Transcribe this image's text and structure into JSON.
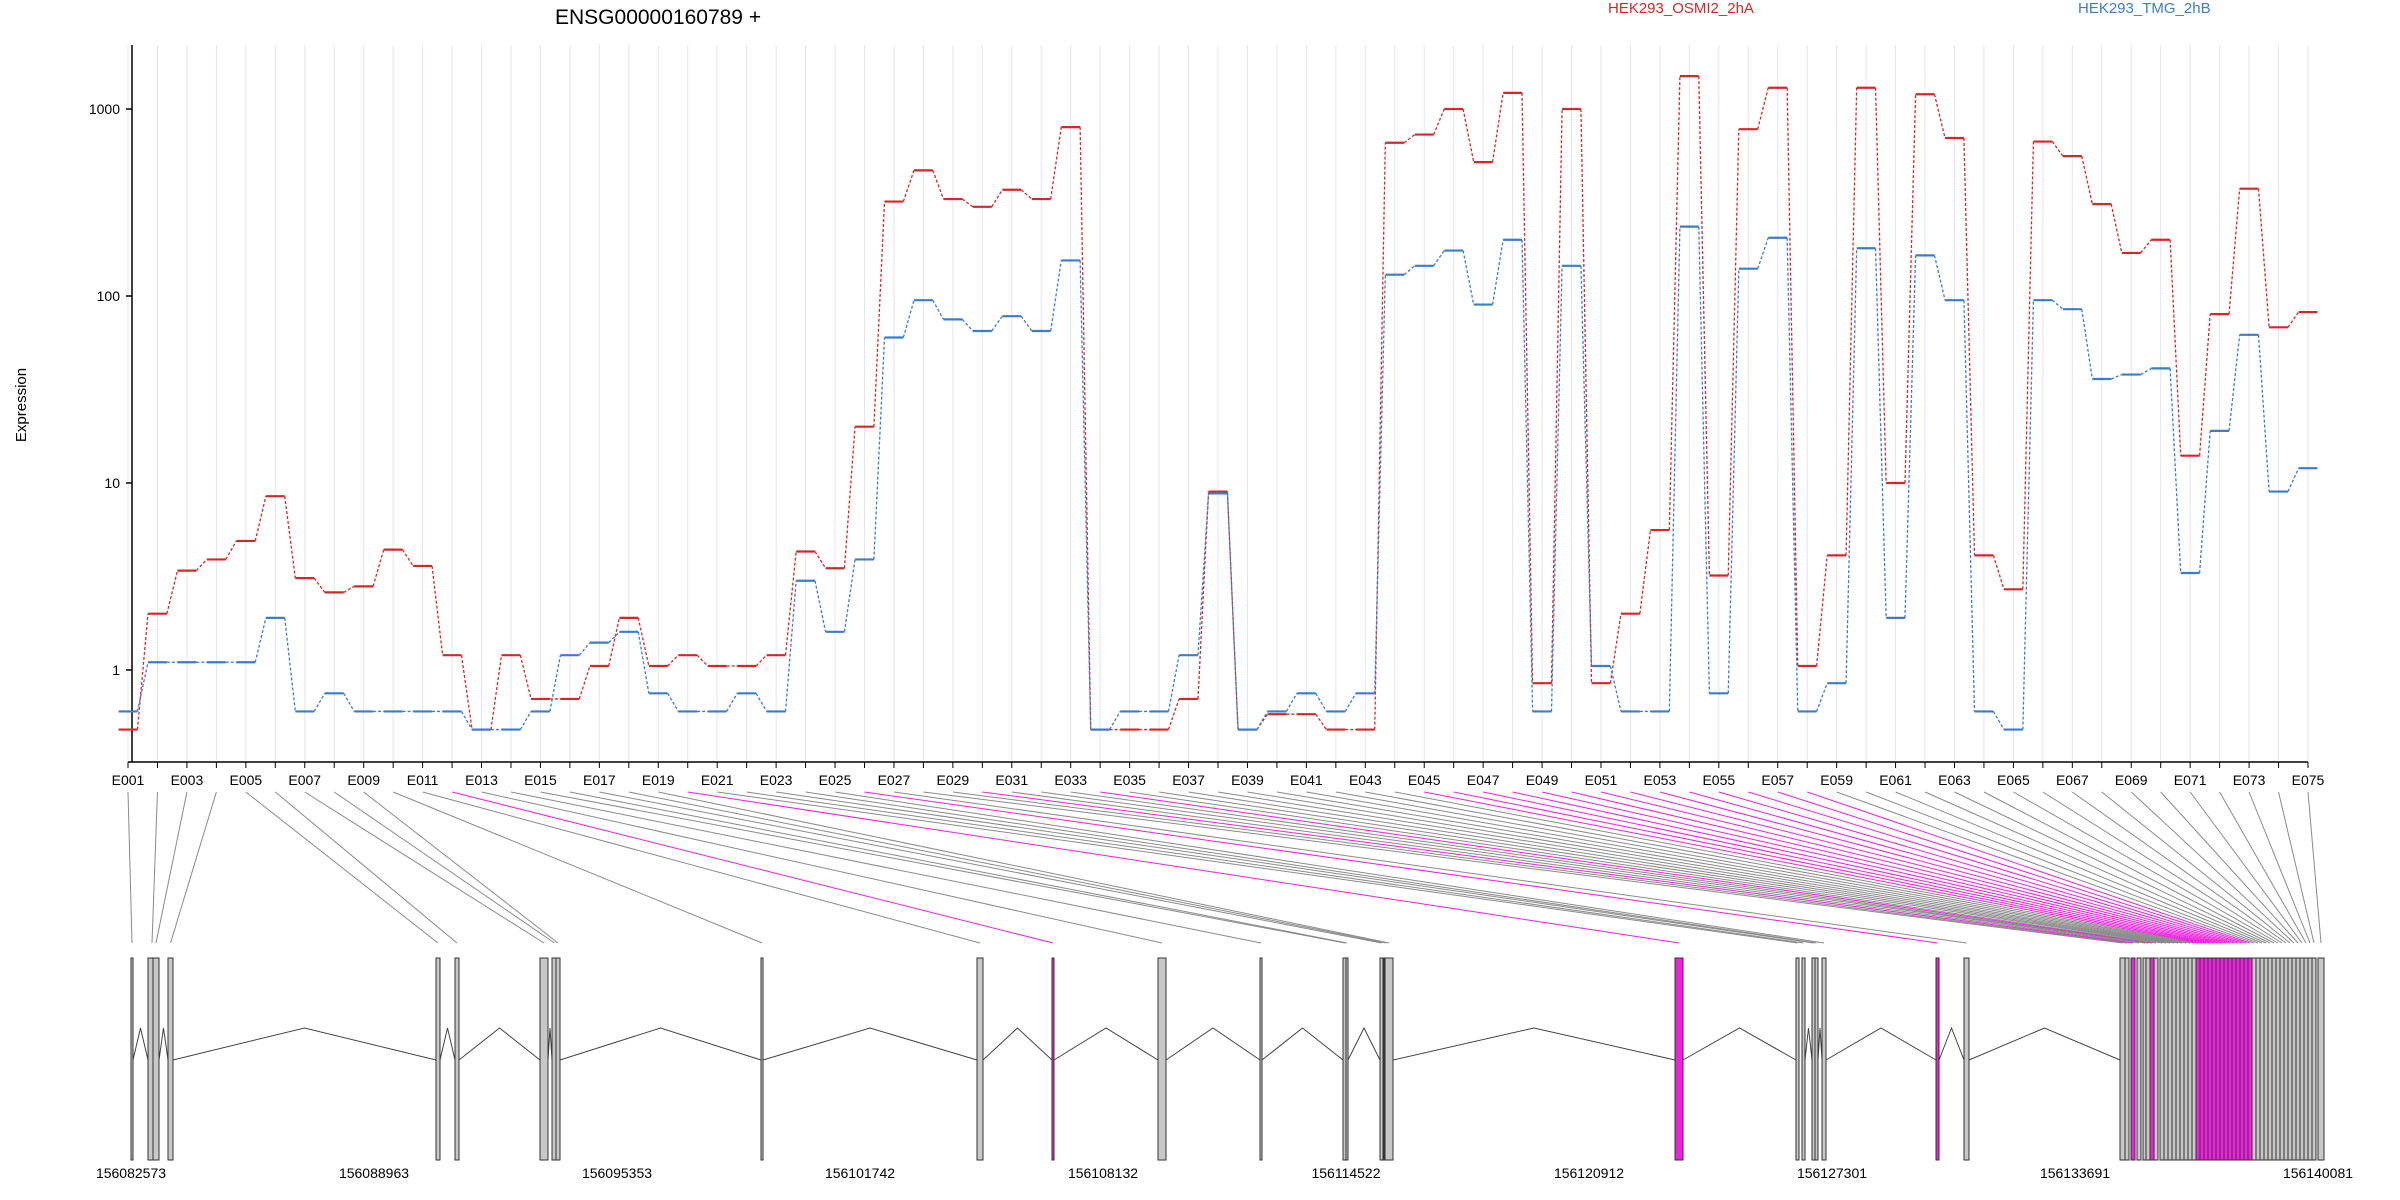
{
  "chart_data": {
    "type": "line",
    "title": "ENSG00000160789 +",
    "ylabel": "Expression",
    "yscale": "log",
    "ylim": [
      0.33,
      2200
    ],
    "yticks": [
      1,
      10,
      100,
      1000
    ],
    "ytick_labels": [
      "1",
      "10",
      "100",
      "1000"
    ],
    "grid": true,
    "legend": "top",
    "categories": [
      "E001",
      "E002",
      "E003",
      "E004",
      "E005",
      "E006",
      "E007",
      "E008",
      "E009",
      "E010",
      "E011",
      "E012",
      "E013",
      "E014",
      "E015",
      "E016",
      "E017",
      "E018",
      "E019",
      "E020",
      "E021",
      "E022",
      "E023",
      "E024",
      "E025",
      "E026",
      "E027",
      "E028",
      "E029",
      "E030",
      "E031",
      "E032",
      "E033",
      "E034",
      "E035",
      "E036",
      "E037",
      "E038",
      "E039",
      "E040",
      "E041",
      "E042",
      "E043",
      "E044",
      "E045",
      "E046",
      "E047",
      "E048",
      "E049",
      "E050",
      "E051",
      "E052",
      "E053",
      "E054",
      "E055",
      "E056",
      "E057",
      "E058",
      "E059",
      "E060",
      "E061",
      "E062",
      "E063",
      "E064",
      "E065",
      "E066",
      "E067",
      "E068",
      "E069",
      "E070",
      "E071",
      "E072",
      "E073",
      "E074",
      "E075"
    ],
    "xtick_labels": [
      "E001",
      "E003",
      "E005",
      "E007",
      "E009",
      "E011",
      "E013",
      "E015",
      "E017",
      "E019",
      "E021",
      "E023",
      "E025",
      "E027",
      "E029",
      "E031",
      "E033",
      "E035",
      "E037",
      "E039",
      "E041",
      "E043",
      "E045",
      "E047",
      "E049",
      "E051",
      "E053",
      "E055",
      "E057",
      "E059",
      "E061",
      "E063",
      "E065",
      "E067",
      "E069",
      "E071",
      "E073",
      "E075"
    ],
    "series": [
      {
        "name": "HEK293_OSMI2_2hA",
        "color": "#d62728",
        "values": [
          0.48,
          2.0,
          3.4,
          3.9,
          4.9,
          8.5,
          3.1,
          2.6,
          2.8,
          4.4,
          3.6,
          1.2,
          0.48,
          1.2,
          0.7,
          0.7,
          1.05,
          1.9,
          1.05,
          1.2,
          1.05,
          1.05,
          1.2,
          4.3,
          3.5,
          20,
          320,
          470,
          330,
          300,
          370,
          330,
          800,
          0.48,
          0.48,
          0.48,
          0.7,
          9,
          0.48,
          0.58,
          0.58,
          0.48,
          0.48,
          660,
          730,
          1000,
          520,
          1220,
          0.85,
          1000,
          0.85,
          2.0,
          5.6,
          1500,
          3.2,
          780,
          1300,
          1.05,
          4.1,
          1300,
          10,
          1200,
          700,
          4.1,
          2.7,
          670,
          560,
          310,
          170,
          200,
          14,
          80,
          375,
          68,
          82
        ]
      },
      {
        "name": "HEK293_TMG_2hB",
        "color": "#3a7dc9",
        "values": [
          0.6,
          1.1,
          1.1,
          1.1,
          1.1,
          1.9,
          0.6,
          0.75,
          0.6,
          0.6,
          0.6,
          0.6,
          0.48,
          0.48,
          0.6,
          1.2,
          1.4,
          1.6,
          0.75,
          0.6,
          0.6,
          0.75,
          0.6,
          3.0,
          1.6,
          3.9,
          60,
          95,
          75,
          65,
          78,
          65,
          155,
          0.48,
          0.6,
          0.6,
          1.2,
          8.8,
          0.48,
          0.6,
          0.75,
          0.6,
          0.75,
          130,
          145,
          175,
          90,
          200,
          0.6,
          145,
          1.05,
          0.6,
          0.6,
          235,
          0.75,
          140,
          205,
          0.6,
          0.85,
          180,
          1.9,
          165,
          95,
          0.6,
          0.48,
          95,
          85,
          36,
          38,
          41,
          3.3,
          19,
          62,
          9,
          12
        ]
      }
    ],
    "gene_model": {
      "coordinate_labels": [
        "156082573",
        "156088963",
        "156095353",
        "156101742",
        "156108132",
        "156114522",
        "156120912",
        "156127301",
        "156133691",
        "156140081"
      ],
      "highlight_color": "#f020e0"
    }
  }
}
